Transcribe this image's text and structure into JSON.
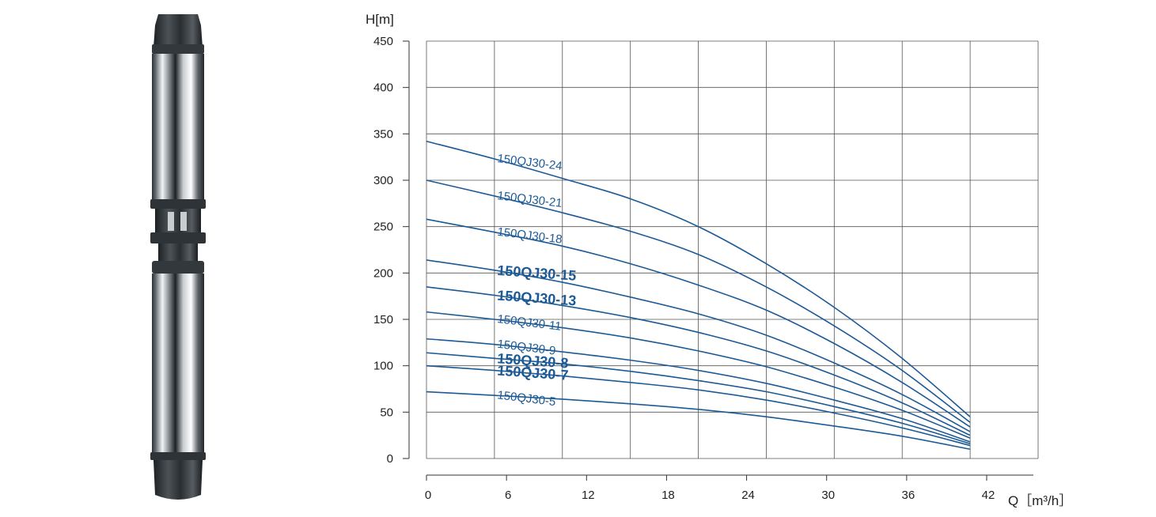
{
  "chart_data": {
    "type": "line",
    "ylabel": "H[m]",
    "xlabel": "Q［m³/h］",
    "xlim": [
      0,
      42
    ],
    "ylim": [
      0,
      450
    ],
    "x_ticks": [
      0,
      6,
      12,
      18,
      24,
      30,
      36,
      42
    ],
    "y_ticks": [
      0,
      50,
      100,
      150,
      200,
      250,
      300,
      350,
      400,
      450
    ],
    "grid": true,
    "line_color": "#1b5a96",
    "x": [
      0,
      5,
      10,
      15,
      20,
      25,
      30,
      35,
      40
    ],
    "series": [
      {
        "name": "150QJ30-24",
        "emphasis": false,
        "values": [
          342,
          323,
          302,
          280,
          250,
          210,
          163,
          108,
          45
        ]
      },
      {
        "name": "150QJ30-21",
        "emphasis": false,
        "values": [
          300,
          283,
          265,
          245,
          220,
          185,
          143,
          95,
          39
        ]
      },
      {
        "name": "150QJ30-18",
        "emphasis": false,
        "values": [
          258,
          244,
          229,
          210,
          187,
          160,
          124,
          82,
          34
        ]
      },
      {
        "name": "150QJ30-15",
        "emphasis": true,
        "values": [
          214,
          203,
          190,
          174,
          156,
          133,
          103,
          69,
          29
        ]
      },
      {
        "name": "150QJ30-13",
        "emphasis": true,
        "values": [
          185,
          176,
          165,
          152,
          136,
          116,
          90,
          60,
          25
        ]
      },
      {
        "name": "150QJ30-11",
        "emphasis": false,
        "values": [
          158,
          150,
          141,
          130,
          116,
          99,
          77,
          52,
          22
        ]
      },
      {
        "name": "150QJ30-9",
        "emphasis": false,
        "values": [
          129,
          123,
          115,
          106,
          95,
          81,
          63,
          43,
          18
        ]
      },
      {
        "name": "150QJ30-8",
        "emphasis": true,
        "values": [
          114,
          108,
          102,
          94,
          84,
          72,
          56,
          38,
          16
        ]
      },
      {
        "name": "150QJ30-7",
        "emphasis": true,
        "values": [
          100,
          95,
          89,
          82,
          74,
          63,
          49,
          33,
          14
        ]
      },
      {
        "name": "150QJ30-5",
        "emphasis": false,
        "values": [
          72,
          68,
          64,
          59,
          53,
          45,
          35,
          24,
          10
        ]
      }
    ]
  }
}
